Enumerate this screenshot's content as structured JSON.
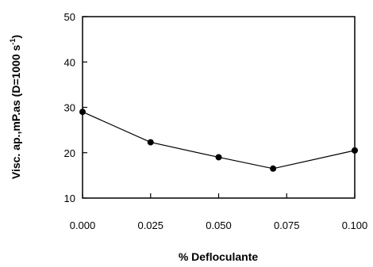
{
  "chart_data": {
    "type": "line",
    "title": "",
    "xlabel": "% Defloculante",
    "ylabel": {
      "main": "Visc. ap.,mP.as (D=1000 s",
      "superscript": "-1",
      "close": ")"
    },
    "xlim": [
      0.0,
      0.1
    ],
    "ylim": [
      10,
      50
    ],
    "x_ticks": [
      0.0,
      0.025,
      0.05,
      0.075,
      0.1
    ],
    "x_tick_labels": [
      "0.000",
      "0.025",
      "0.050",
      "0.075",
      "0.100"
    ],
    "y_ticks": [
      10,
      20,
      30,
      40,
      50
    ],
    "y_tick_labels": [
      "10",
      "20",
      "30",
      "40",
      "50"
    ],
    "grid": false,
    "series": [
      {
        "x": [
          0.0,
          0.025,
          0.05,
          0.07,
          0.1
        ],
        "y": [
          29,
          22.3,
          19,
          16.5,
          20.5
        ],
        "marker": "filled-circle",
        "color": "#000000"
      }
    ]
  }
}
